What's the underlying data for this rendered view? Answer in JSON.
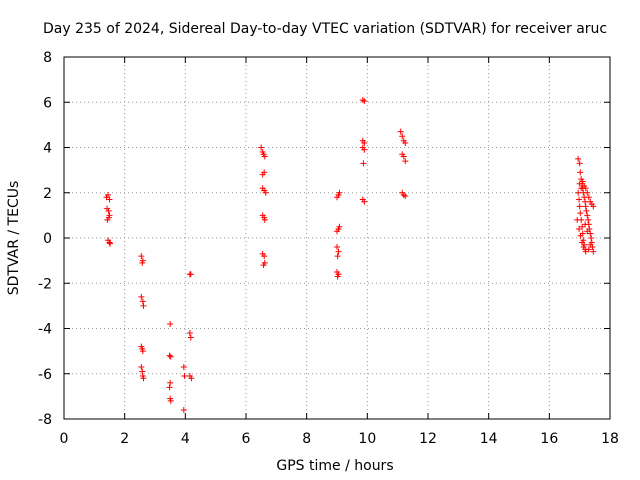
{
  "chart_data": {
    "type": "scatter",
    "title": "Day 235 of 2024, Sidereal Day-to-day VTEC variation (SDTVAR) for receiver aruc",
    "xlabel": "GPS time / hours",
    "ylabel": "SDTVAR / TECUs",
    "xlim": [
      0,
      18
    ],
    "ylim": [
      -8,
      8
    ],
    "xticks": [
      0,
      2,
      4,
      6,
      8,
      10,
      12,
      14,
      16,
      18
    ],
    "yticks": [
      -8,
      -6,
      -4,
      -2,
      0,
      2,
      4,
      6,
      8
    ],
    "grid": true,
    "marker": "+",
    "color": "#ff0000",
    "series": [
      {
        "name": "SDTVAR",
        "points": [
          [
            1.4,
            1.8
          ],
          [
            1.45,
            1.9
          ],
          [
            1.5,
            1.7
          ],
          [
            1.42,
            1.3
          ],
          [
            1.47,
            1.2
          ],
          [
            1.5,
            1.0
          ],
          [
            1.43,
            0.8
          ],
          [
            1.48,
            0.9
          ],
          [
            1.45,
            -0.1
          ],
          [
            1.5,
            -0.2
          ],
          [
            1.52,
            -0.25
          ],
          [
            2.55,
            -0.8
          ],
          [
            2.6,
            -1.0
          ],
          [
            2.58,
            -1.1
          ],
          [
            2.55,
            -2.6
          ],
          [
            2.6,
            -2.8
          ],
          [
            2.62,
            -3.0
          ],
          [
            2.55,
            -4.8
          ],
          [
            2.58,
            -4.9
          ],
          [
            2.6,
            -5.0
          ],
          [
            2.55,
            -5.7
          ],
          [
            2.58,
            -5.9
          ],
          [
            2.6,
            -6.1
          ],
          [
            2.62,
            -6.2
          ],
          [
            3.5,
            -3.8
          ],
          [
            3.48,
            -5.2
          ],
          [
            3.52,
            -5.25
          ],
          [
            3.5,
            -6.4
          ],
          [
            3.48,
            -6.6
          ],
          [
            3.5,
            -7.1
          ],
          [
            3.52,
            -7.2
          ],
          [
            3.95,
            -5.7
          ],
          [
            3.97,
            -6.1
          ],
          [
            3.95,
            -7.6
          ],
          [
            4.15,
            -1.6
          ],
          [
            4.18,
            -1.6
          ],
          [
            4.15,
            -4.2
          ],
          [
            4.18,
            -4.4
          ],
          [
            4.15,
            -6.1
          ],
          [
            4.2,
            -6.2
          ],
          [
            6.5,
            4.0
          ],
          [
            6.55,
            3.8
          ],
          [
            6.58,
            3.7
          ],
          [
            6.62,
            3.6
          ],
          [
            6.55,
            2.8
          ],
          [
            6.6,
            2.9
          ],
          [
            6.55,
            2.2
          ],
          [
            6.6,
            2.1
          ],
          [
            6.65,
            2.0
          ],
          [
            6.55,
            1.0
          ],
          [
            6.6,
            0.9
          ],
          [
            6.62,
            0.8
          ],
          [
            6.55,
            -0.7
          ],
          [
            6.6,
            -0.8
          ],
          [
            6.62,
            -1.1
          ],
          [
            6.58,
            -1.2
          ],
          [
            9.0,
            1.8
          ],
          [
            9.05,
            1.9
          ],
          [
            9.08,
            2.0
          ],
          [
            9.0,
            0.3
          ],
          [
            9.05,
            0.4
          ],
          [
            9.08,
            0.5
          ],
          [
            9.0,
            -0.4
          ],
          [
            9.05,
            -0.6
          ],
          [
            9.02,
            -0.8
          ],
          [
            9.0,
            -1.5
          ],
          [
            9.05,
            -1.6
          ],
          [
            9.02,
            -1.7
          ],
          [
            9.85,
            6.1
          ],
          [
            9.9,
            6.05
          ],
          [
            9.85,
            4.3
          ],
          [
            9.9,
            4.2
          ],
          [
            9.85,
            4.0
          ],
          [
            9.9,
            3.9
          ],
          [
            9.87,
            3.3
          ],
          [
            9.85,
            1.7
          ],
          [
            9.9,
            1.6
          ],
          [
            11.1,
            4.7
          ],
          [
            11.15,
            4.5
          ],
          [
            11.2,
            4.3
          ],
          [
            11.25,
            4.2
          ],
          [
            11.15,
            3.7
          ],
          [
            11.2,
            3.6
          ],
          [
            11.25,
            3.4
          ],
          [
            11.15,
            2.0
          ],
          [
            11.2,
            1.9
          ],
          [
            11.25,
            1.85
          ],
          [
            16.95,
            3.5
          ],
          [
            17.0,
            3.3
          ],
          [
            17.02,
            2.9
          ],
          [
            17.05,
            2.6
          ],
          [
            17.08,
            2.4
          ],
          [
            17.1,
            2.2
          ],
          [
            17.12,
            2.0
          ],
          [
            17.15,
            1.8
          ],
          [
            17.18,
            1.6
          ],
          [
            17.2,
            1.4
          ],
          [
            17.22,
            1.2
          ],
          [
            17.25,
            1.0
          ],
          [
            17.28,
            0.8
          ],
          [
            17.3,
            0.6
          ],
          [
            17.32,
            0.4
          ],
          [
            17.35,
            0.2
          ],
          [
            17.38,
            0.0
          ],
          [
            17.4,
            -0.2
          ],
          [
            17.42,
            -0.4
          ],
          [
            17.45,
            -0.6
          ],
          [
            16.95,
            2.0
          ],
          [
            16.98,
            1.7
          ],
          [
            17.0,
            1.4
          ],
          [
            17.02,
            1.1
          ],
          [
            17.05,
            0.8
          ],
          [
            17.08,
            0.5
          ],
          [
            17.1,
            0.2
          ],
          [
            17.12,
            -0.1
          ],
          [
            17.15,
            -0.3
          ],
          [
            17.18,
            -0.5
          ],
          [
            17.0,
            2.4
          ],
          [
            17.05,
            2.2
          ],
          [
            17.1,
            2.5
          ],
          [
            17.15,
            2.3
          ],
          [
            17.2,
            2.2
          ],
          [
            17.25,
            2.0
          ],
          [
            17.3,
            1.8
          ],
          [
            17.35,
            1.6
          ],
          [
            17.4,
            1.5
          ],
          [
            17.45,
            1.4
          ],
          [
            16.92,
            0.8
          ],
          [
            16.98,
            0.4
          ],
          [
            17.03,
            0.1
          ],
          [
            17.08,
            -0.2
          ],
          [
            17.13,
            -0.4
          ],
          [
            17.2,
            -0.6
          ],
          [
            17.3,
            -0.5
          ],
          [
            17.35,
            -0.3
          ],
          [
            17.25,
            0.3
          ],
          [
            17.18,
            0.6
          ]
        ]
      }
    ]
  }
}
